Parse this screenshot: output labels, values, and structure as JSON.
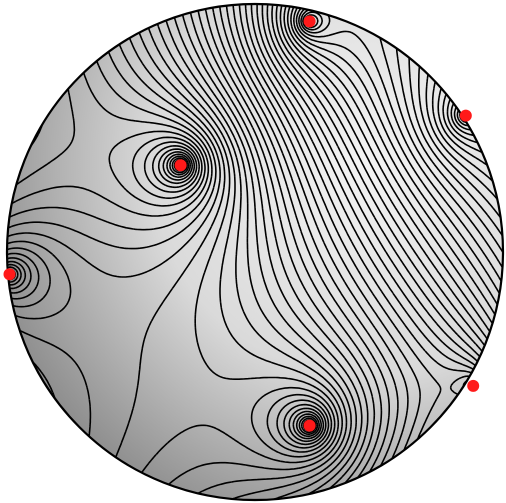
{
  "figure": {
    "subject": "sphere",
    "contour_count": 60,
    "colors": {
      "background": "#ffffff",
      "sphere_light": "#f2f2f2",
      "sphere_mid": "#d6d6d6",
      "sphere_dark": "#9a9a9a",
      "contour": "#000000",
      "point": "#ff1a1a"
    },
    "points": [
      {
        "name": "point-center",
        "u": -0.3,
        "v": -0.35,
        "visible": true
      },
      {
        "name": "point-top",
        "u": 0.22,
        "v": -0.93,
        "visible": true
      },
      {
        "name": "point-bottom",
        "u": 0.22,
        "v": 0.7,
        "visible": true
      },
      {
        "name": "point-right-upper",
        "u": 0.85,
        "v": -0.55,
        "visible": true
      },
      {
        "name": "point-right-lower",
        "u": 0.88,
        "v": 0.54,
        "visible": true
      },
      {
        "name": "point-left",
        "u": -0.99,
        "v": 0.09,
        "visible": true
      }
    ]
  }
}
